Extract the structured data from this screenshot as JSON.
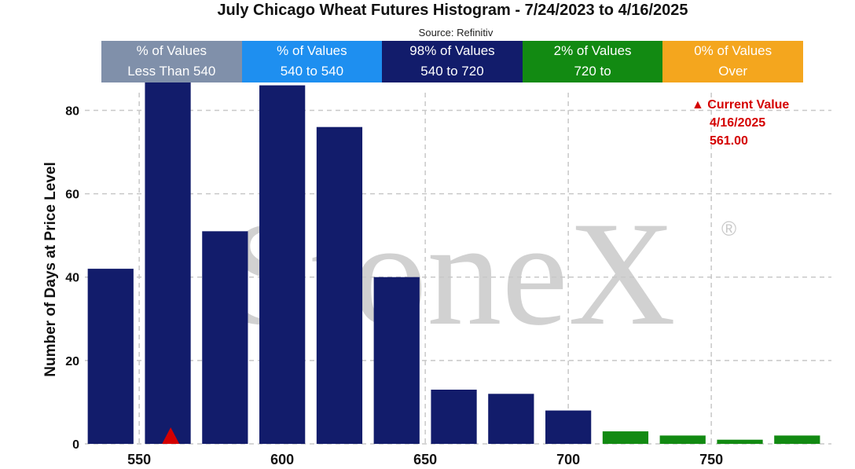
{
  "title": "July Chicago Wheat Futures Histogram - 7/24/2023 to 4/16/2025",
  "source": "Source: Refinitiv",
  "bands": [
    {
      "line1": "% of Values",
      "line2": "Less Than 540",
      "color": "#8090aa"
    },
    {
      "line1": "% of Values",
      "line2": "540 to 540",
      "color": "#1e8ff0"
    },
    {
      "line1": "98% of Values",
      "line2": "540 to 720",
      "color": "#121c6b"
    },
    {
      "line1": "2% of Values",
      "line2": "720 to",
      "color": "#128a12"
    },
    {
      "line1": "0% of Values",
      "line2": "Over",
      "color": "#f4a61e"
    }
  ],
  "annotation": {
    "label": "Current Value",
    "date": "4/16/2025",
    "value": "561.00",
    "marker": "triangle-up-icon",
    "color": "#d40000"
  },
  "watermark": {
    "brand": "StoneX",
    "registered": "®"
  },
  "chart_data": {
    "type": "bar",
    "x": [
      540,
      560,
      580,
      600,
      620,
      640,
      660,
      680,
      700,
      720,
      740,
      760,
      780
    ],
    "values": [
      42,
      87,
      51,
      86,
      76,
      40,
      13,
      12,
      8,
      3,
      2,
      1,
      2
    ],
    "bar_colors": [
      "#121c6b",
      "#121c6b",
      "#121c6b",
      "#121c6b",
      "#121c6b",
      "#121c6b",
      "#121c6b",
      "#121c6b",
      "#121c6b",
      "#128a12",
      "#128a12",
      "#128a12",
      "#128a12"
    ],
    "ylabel": "Number of Days at Price Level",
    "xlabel": "",
    "xticks": [
      550,
      600,
      650,
      700,
      750
    ],
    "yticks": [
      0,
      20,
      40,
      60,
      80
    ],
    "ylim": [
      0,
      88
    ],
    "xlim": [
      531,
      792
    ],
    "grid": true,
    "current_value_x": 561
  }
}
